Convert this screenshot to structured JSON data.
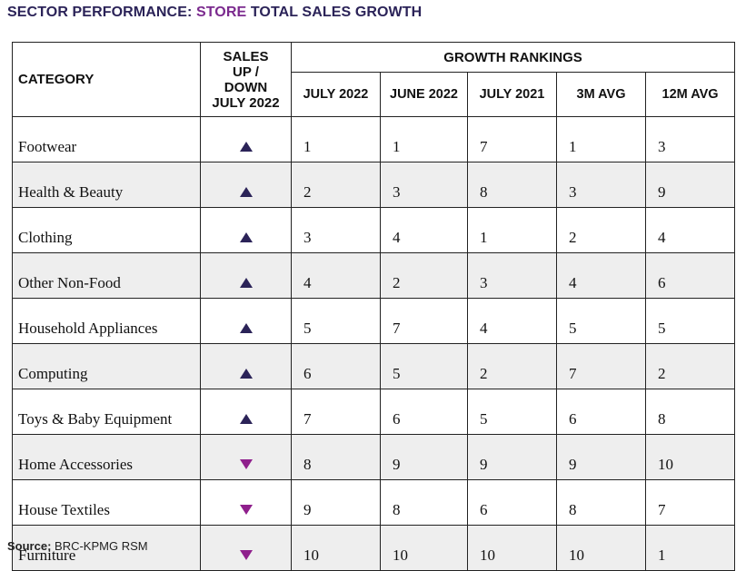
{
  "title": {
    "prefix": "SECTOR PERFORMANCE:",
    "highlight": "STORE",
    "suffix": "TOTAL SALES GROWTH",
    "highlight_color": "#7b2a8e",
    "title_color": "#2b2358"
  },
  "chart_data": {
    "type": "table",
    "headers": {
      "category": "CATEGORY",
      "updown_line1": "SALES",
      "updown_line2": "UP /",
      "updown_line3": "DOWN",
      "updown_line4": "JULY 2022",
      "group": "GROWTH RANKINGS",
      "columns": [
        "JULY 2022",
        "JUNE 2022",
        "JULY 2021",
        "3M AVG",
        "12M AVG"
      ]
    },
    "rows": [
      {
        "category": "Footwear",
        "direction": "up",
        "values": [
          "1",
          "1",
          "7",
          "1",
          "3"
        ]
      },
      {
        "category": "Health & Beauty",
        "direction": "up",
        "values": [
          "2",
          "3",
          "8",
          "3",
          "9"
        ]
      },
      {
        "category": "Clothing",
        "direction": "up",
        "values": [
          "3",
          "4",
          "1",
          "2",
          "4"
        ]
      },
      {
        "category": "Other Non-Food",
        "direction": "up",
        "values": [
          "4",
          "2",
          "3",
          "4",
          "6"
        ]
      },
      {
        "category": "Household Appliances",
        "direction": "up",
        "values": [
          "5",
          "7",
          "4",
          "5",
          "5"
        ]
      },
      {
        "category": "Computing",
        "direction": "up",
        "values": [
          "6",
          "5",
          "2",
          "7",
          "2"
        ]
      },
      {
        "category": "Toys & Baby Equipment",
        "direction": "up",
        "values": [
          "7",
          "6",
          "5",
          "6",
          "8"
        ]
      },
      {
        "category": "Home Accessories",
        "direction": "down",
        "values": [
          "8",
          "9",
          "9",
          "9",
          "10"
        ]
      },
      {
        "category": "House Textiles",
        "direction": "down",
        "values": [
          "9",
          "8",
          "6",
          "8",
          "7"
        ]
      },
      {
        "category": "Furniture",
        "direction": "down",
        "values": [
          "10",
          "10",
          "10",
          "10",
          "1"
        ]
      }
    ],
    "colors": {
      "up": "#2b2358",
      "down": "#8f1f8c",
      "alt_row": "#eeeeee"
    }
  },
  "source": {
    "label": "Source:",
    "text": "BRC-KPMG RSM"
  }
}
